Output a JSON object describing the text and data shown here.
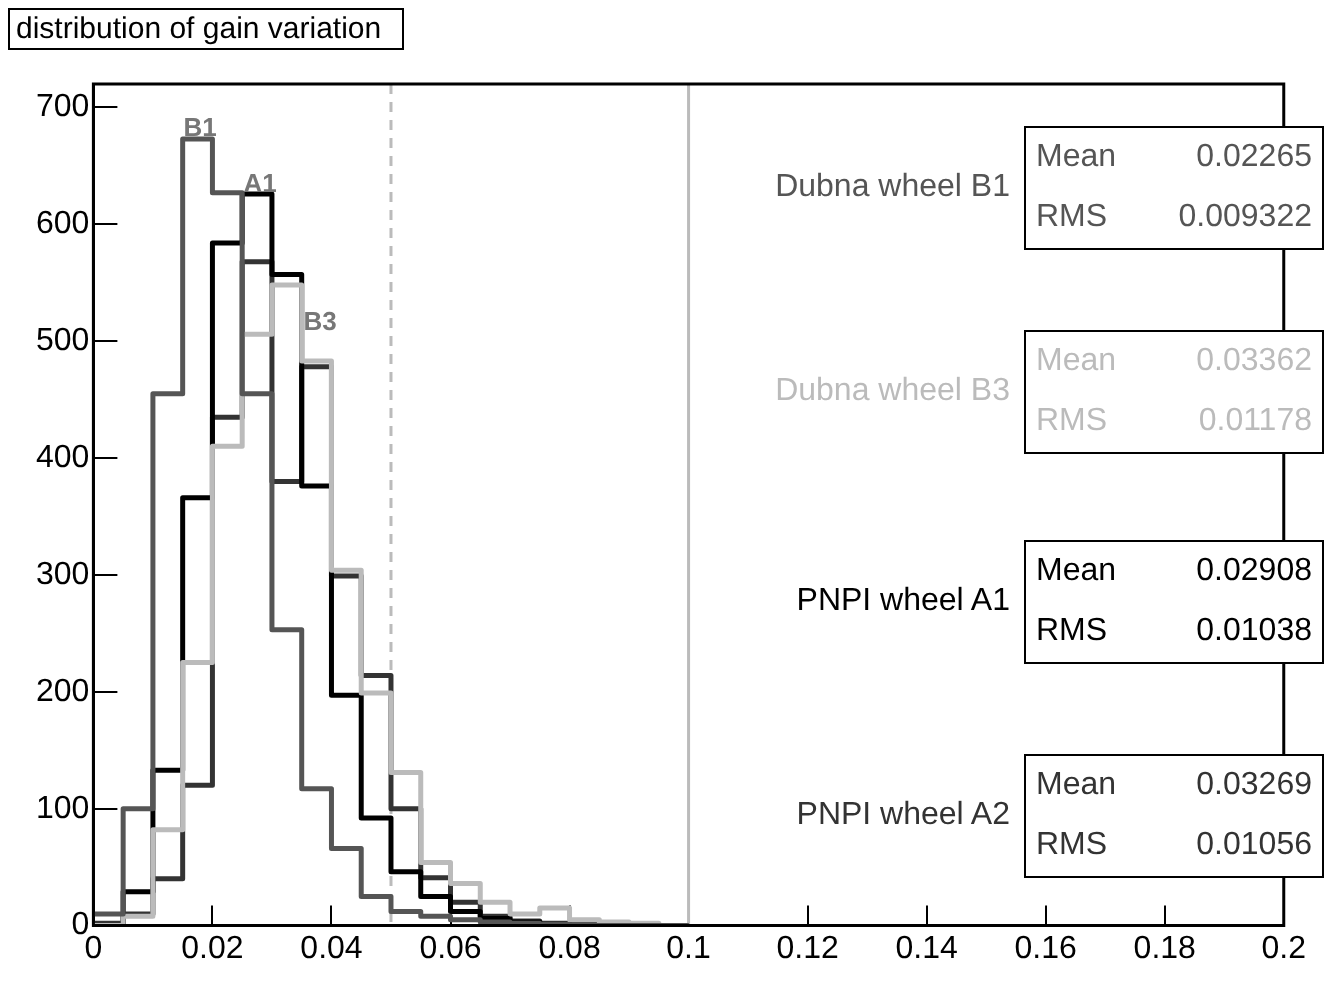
{
  "chart_data": {
    "type": "histogram",
    "title": "distribution of gain variation",
    "bins": [
      0,
      0.005,
      0.01,
      0.015,
      0.02,
      0.025,
      0.03,
      0.035,
      0.04,
      0.045,
      0.05,
      0.055,
      0.06,
      0.065,
      0.07,
      0.075,
      0.08,
      0.085,
      0.09,
      0.095,
      0.1
    ],
    "series": [
      {
        "name": "Dubna wheel B1",
        "color": "#555555",
        "values": [
          10,
          100,
          455,
          673,
          627,
          455,
          253,
          117,
          66,
          25,
          12,
          8,
          5,
          3,
          2,
          1,
          0,
          0,
          0,
          0
        ]
      },
      {
        "name": "Dubna wheel B3",
        "color": "#bbbbbb",
        "values": [
          0,
          8,
          82,
          225,
          410,
          506,
          548,
          483,
          304,
          199,
          131,
          54,
          36,
          20,
          10,
          15,
          5,
          3,
          2,
          0
        ]
      },
      {
        "name": "PNPI wheel A1",
        "color": "#000000",
        "values": [
          0,
          29,
          133,
          366,
          584,
          626,
          557,
          376,
          197,
          92,
          46,
          25,
          12,
          6,
          3,
          1,
          0,
          0,
          0,
          0
        ]
      },
      {
        "name": "PNPI wheel A2",
        "color": "#333333",
        "values": [
          2,
          10,
          40,
          120,
          435,
          568,
          380,
          478,
          299,
          214,
          100,
          41,
          20,
          8,
          4,
          2,
          1,
          0,
          0,
          0
        ]
      }
    ],
    "xlim": [
      0,
      0.2
    ],
    "xticks": [
      0,
      0.02,
      0.04,
      0.06,
      0.08,
      0.1,
      0.12,
      0.14,
      0.16,
      0.18,
      0.2
    ],
    "ylim": [
      0,
      720
    ],
    "yticks": [
      0,
      100,
      200,
      300,
      400,
      500,
      600,
      700
    ],
    "grid": false,
    "legend": false,
    "ref_lines": [
      {
        "axis": "x",
        "value": 0.05,
        "color": "#bbbbbb",
        "line_style": "dashed"
      },
      {
        "axis": "x",
        "value": 0.1,
        "color": "#bbbbbb",
        "line_style": "solid"
      }
    ],
    "annotations": [
      "B1",
      "A1",
      "B3",
      "Mean",
      "0.02265",
      "RMS",
      "0.009322",
      "Mean",
      "0.03362",
      "RMS",
      "0.01178",
      "Mean",
      "0.02908",
      "RMS",
      "0.01038",
      "Mean",
      "0.03269",
      "RMS",
      "0.01056"
    ]
  }
}
